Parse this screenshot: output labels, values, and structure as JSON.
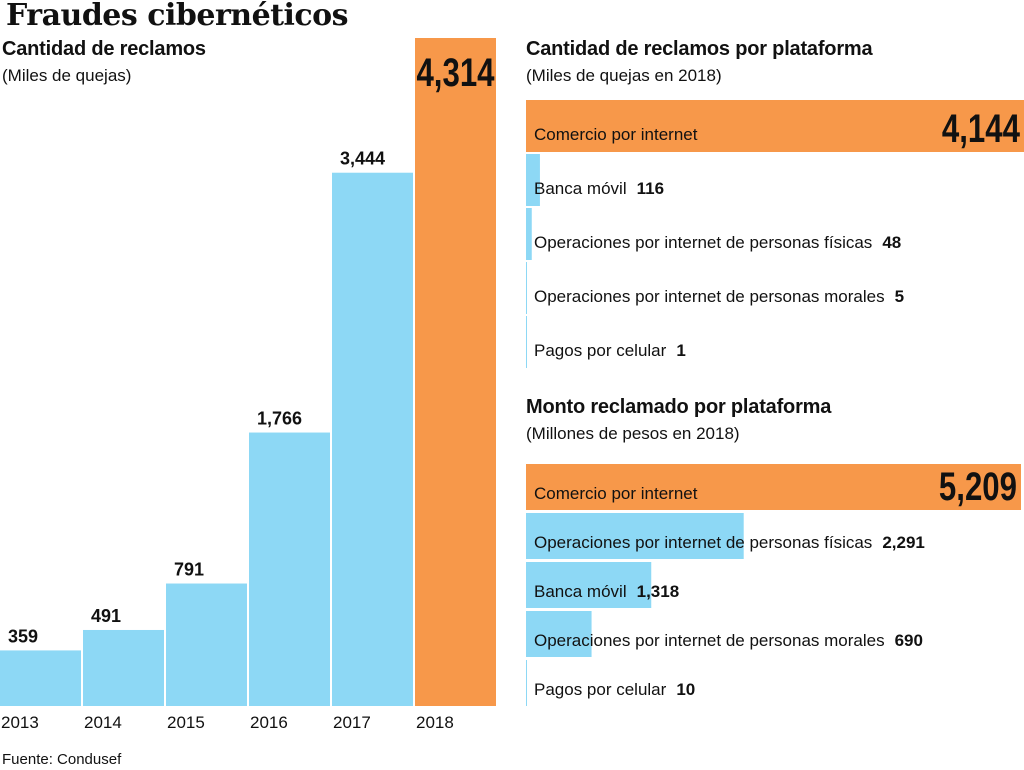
{
  "header": {
    "title": "Fraudes cibernéticos",
    "source": "Fuente: Condusef"
  },
  "colors": {
    "blue": "#8dd8f5",
    "orange": "#f7984a",
    "text": "#111111"
  },
  "chart_data": [
    {
      "type": "bar",
      "title": "Cantidad de reclamos",
      "subtitle": "(Miles de quejas)",
      "categories": [
        "2013",
        "2014",
        "2015",
        "2016",
        "2017",
        "2018"
      ],
      "values": [
        359,
        491,
        791,
        1766,
        3444,
        4314
      ],
      "value_labels": [
        "359",
        "491",
        "791",
        "1,766",
        "3,444",
        "4,314"
      ],
      "highlight_index": 5,
      "ylim": [
        0,
        4314
      ]
    },
    {
      "type": "bar",
      "orientation": "horizontal",
      "title": "Cantidad de reclamos por plataforma",
      "subtitle": "(Miles de quejas en 2018)",
      "categories": [
        "Comercio por internet",
        "Banca móvil",
        "Operaciones por internet de personas físicas",
        "Operaciones por internet de personas morales",
        "Pagos por celular"
      ],
      "values": [
        4144,
        116,
        48,
        5,
        1
      ],
      "value_labels": [
        "4,144",
        "116",
        "48",
        "5",
        "1"
      ],
      "highlight_index": 0,
      "xlim": [
        0,
        4144
      ]
    },
    {
      "type": "bar",
      "orientation": "horizontal",
      "title": "Monto reclamado por plataforma",
      "subtitle": "(Millones de pesos en 2018)",
      "categories": [
        "Comercio por internet",
        "Operaciones por internet de personas físicas",
        "Banca móvil",
        "Operaciones por internet de personas morales",
        "Pagos por celular"
      ],
      "values": [
        5209,
        2291,
        1318,
        690,
        10
      ],
      "value_labels": [
        "5,209",
        "2,291",
        "1,318",
        "690",
        "10"
      ],
      "highlight_index": 0,
      "xlim": [
        0,
        5209
      ]
    }
  ]
}
